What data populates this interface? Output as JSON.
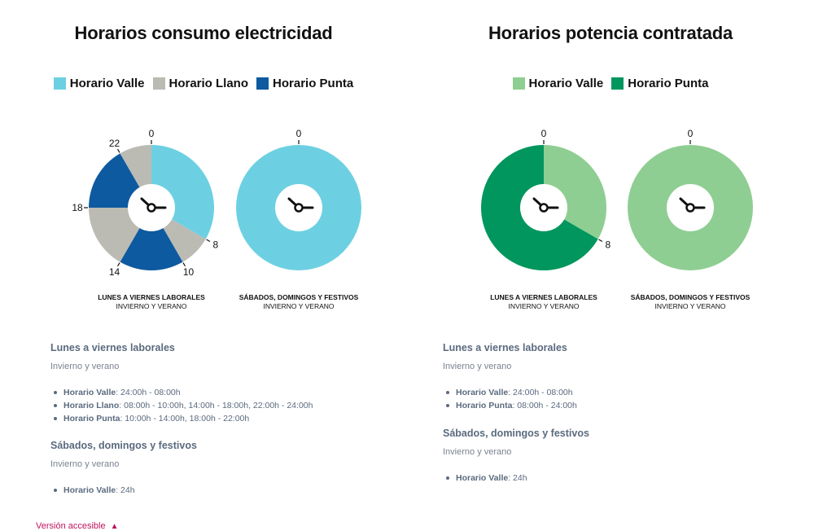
{
  "chart_data": [
    {
      "type": "pie",
      "title": "Horarios consumo electricidad",
      "legend": [
        {
          "label": "Horario Valle",
          "color": "#6dd0e2"
        },
        {
          "label": "Horario Llano",
          "color": "#bbbbb3"
        },
        {
          "label": "Horario Punta",
          "color": "#0d5aa0"
        }
      ],
      "clocks": [
        {
          "caption": "LUNES A VIERNES LABORALES",
          "subcaption": "INVIERNO Y VERANO",
          "hour_labels": [
            "0",
            "8",
            "10",
            "14",
            "18",
            "22"
          ],
          "segments": [
            {
              "name": "Horario Valle",
              "start": 0,
              "end": 8
            },
            {
              "name": "Horario Llano",
              "start": 8,
              "end": 10
            },
            {
              "name": "Horario Punta",
              "start": 10,
              "end": 14
            },
            {
              "name": "Horario Llano",
              "start": 14,
              "end": 18
            },
            {
              "name": "Horario Punta",
              "start": 18,
              "end": 22
            },
            {
              "name": "Horario Llano",
              "start": 22,
              "end": 24
            }
          ]
        },
        {
          "caption": "SÁBADOS, DOMINGOS Y FESTIVOS",
          "subcaption": "INVIERNO Y VERANO",
          "hour_labels": [
            "0"
          ],
          "segments": [
            {
              "name": "Horario Valle",
              "start": 0,
              "end": 24
            }
          ]
        }
      ]
    },
    {
      "type": "pie",
      "title": "Horarios potencia contratada",
      "legend": [
        {
          "label": "Horario Valle",
          "color": "#8fce92"
        },
        {
          "label": "Horario Punta",
          "color": "#00965e"
        }
      ],
      "clocks": [
        {
          "caption": "LUNES A VIERNES LABORALES",
          "subcaption": "INVIERNO Y VERANO",
          "hour_labels": [
            "0",
            "8"
          ],
          "segments": [
            {
              "name": "Horario Valle",
              "start": 0,
              "end": 8
            },
            {
              "name": "Horario Punta",
              "start": 8,
              "end": 24
            }
          ]
        },
        {
          "caption": "SÁBADOS, DOMINGOS Y FESTIVOS",
          "subcaption": "INVIERNO Y VERANO",
          "hour_labels": [
            "0"
          ],
          "segments": [
            {
              "name": "Horario Valle",
              "start": 0,
              "end": 24
            }
          ]
        }
      ]
    }
  ],
  "schedules": [
    {
      "groups": [
        {
          "heading": "Lunes a viernes laborales",
          "season": "Invierno y verano",
          "items": [
            {
              "label": "Horario Valle",
              "value": "24:00h - 08:00h"
            },
            {
              "label": "Horario Llano",
              "value": "08:00h - 10:00h, 14:00h - 18:00h, 22:00h - 24:00h"
            },
            {
              "label": "Horario Punta",
              "value": "10:00h - 14:00h, 18:00h - 22:00h"
            }
          ]
        },
        {
          "heading": "Sábados, domingos y festivos",
          "season": "Invierno y verano",
          "items": [
            {
              "label": "Horario Valle",
              "value": "24h"
            }
          ]
        }
      ]
    },
    {
      "groups": [
        {
          "heading": "Lunes a viernes laborales",
          "season": "Invierno y verano",
          "items": [
            {
              "label": "Horario Valle",
              "value": "24:00h - 08:00h"
            },
            {
              "label": "Horario Punta",
              "value": "08:00h - 24:00h"
            }
          ]
        },
        {
          "heading": "Sábados, domingos y festivos",
          "season": "Invierno y verano",
          "items": [
            {
              "label": "Horario Valle",
              "value": "24h"
            }
          ]
        }
      ]
    }
  ],
  "accessible_link": {
    "label": "Versión accesible",
    "icon": "chevron-up-icon"
  }
}
